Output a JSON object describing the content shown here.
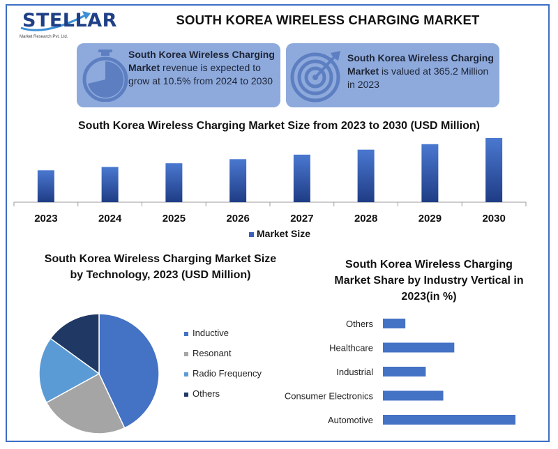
{
  "header": {
    "logo_text": "STELLAR",
    "logo_subtext": "Market Research Pvt. Ltd.",
    "title": "SOUTH KOREA WIRELESS CHARGING MARKET"
  },
  "stats": [
    {
      "bold": "South Korea Wireless Charging Market",
      "rest": " revenue is expected to grow at 10.5% from 2024 to 2030",
      "icon": "stopwatch-icon"
    },
    {
      "bold": "South Korea Wireless Charging Market",
      "rest": " is valued at 365.2 Million in 2023",
      "icon": "target-icon"
    }
  ],
  "colors": {
    "frame": "#3d6ec4",
    "stat_box": "#8eaadc",
    "bar_fill": "#3b62b8",
    "inductive": "#4472c4",
    "resonant": "#a5a5a5",
    "radio_frequency": "#5b9bd5",
    "others": "#203864",
    "hbar": "#4472c4"
  },
  "chart_data": [
    {
      "type": "bar",
      "title": "South Korea Wireless Charging Market Size from 2023 to 2030 (USD Million)",
      "categories": [
        "2023",
        "2024",
        "2025",
        "2026",
        "2027",
        "2028",
        "2029",
        "2030"
      ],
      "series": [
        {
          "name": "Market Size",
          "values": [
            365.2,
            403.5,
            445.9,
            492.8,
            544.5,
            601.7,
            664.9,
            734.7
          ]
        }
      ],
      "legend": "bottom",
      "grid": false
    },
    {
      "type": "pie",
      "title": "South Korea Wireless Charging Market Size by Technology, 2023 (USD Million)",
      "categories": [
        "Inductive",
        "Resonant",
        "Radio Frequency",
        "Others"
      ],
      "values": [
        43,
        24,
        18,
        15
      ],
      "legend": "right"
    },
    {
      "type": "bar",
      "orientation": "horizontal",
      "title": "South Korea Wireless Charging Market Share by Industry Vertical in 2023(in %)",
      "categories": [
        "Others",
        "Healthcare",
        "Industrial",
        "Consumer Electronics",
        "Automotive"
      ],
      "values": [
        5.5,
        17.5,
        10.5,
        14.8,
        32.5
      ],
      "grid": false
    }
  ]
}
